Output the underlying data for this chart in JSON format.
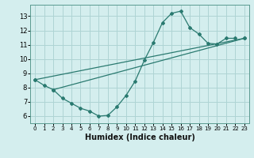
{
  "title": "",
  "xlabel": "Humidex (Indice chaleur)",
  "xlim": [
    -0.5,
    23.5
  ],
  "ylim": [
    5.5,
    13.8
  ],
  "xticks": [
    0,
    1,
    2,
    3,
    4,
    5,
    6,
    7,
    8,
    9,
    10,
    11,
    12,
    13,
    14,
    15,
    16,
    17,
    18,
    19,
    20,
    21,
    22,
    23
  ],
  "yticks": [
    6,
    7,
    8,
    9,
    10,
    11,
    12,
    13
  ],
  "color": "#2a7a70",
  "bg_color": "#d4eeee",
  "grid_color": "#aed4d4",
  "line1_x": [
    0,
    1,
    2,
    3,
    4,
    5,
    6,
    7,
    8,
    9,
    10,
    11,
    12,
    13,
    14,
    15,
    16,
    17,
    18,
    19,
    20,
    21,
    22
  ],
  "line1_y": [
    8.55,
    8.15,
    7.85,
    7.25,
    6.9,
    6.55,
    6.35,
    6.0,
    6.05,
    6.65,
    7.45,
    8.45,
    9.9,
    11.15,
    12.55,
    13.2,
    13.35,
    12.2,
    11.75,
    11.1,
    11.05,
    11.45,
    11.45
  ],
  "line2_x": [
    0,
    23
  ],
  "line2_y": [
    8.55,
    11.45
  ],
  "line3_x": [
    2,
    23
  ],
  "line3_y": [
    7.85,
    11.45
  ]
}
